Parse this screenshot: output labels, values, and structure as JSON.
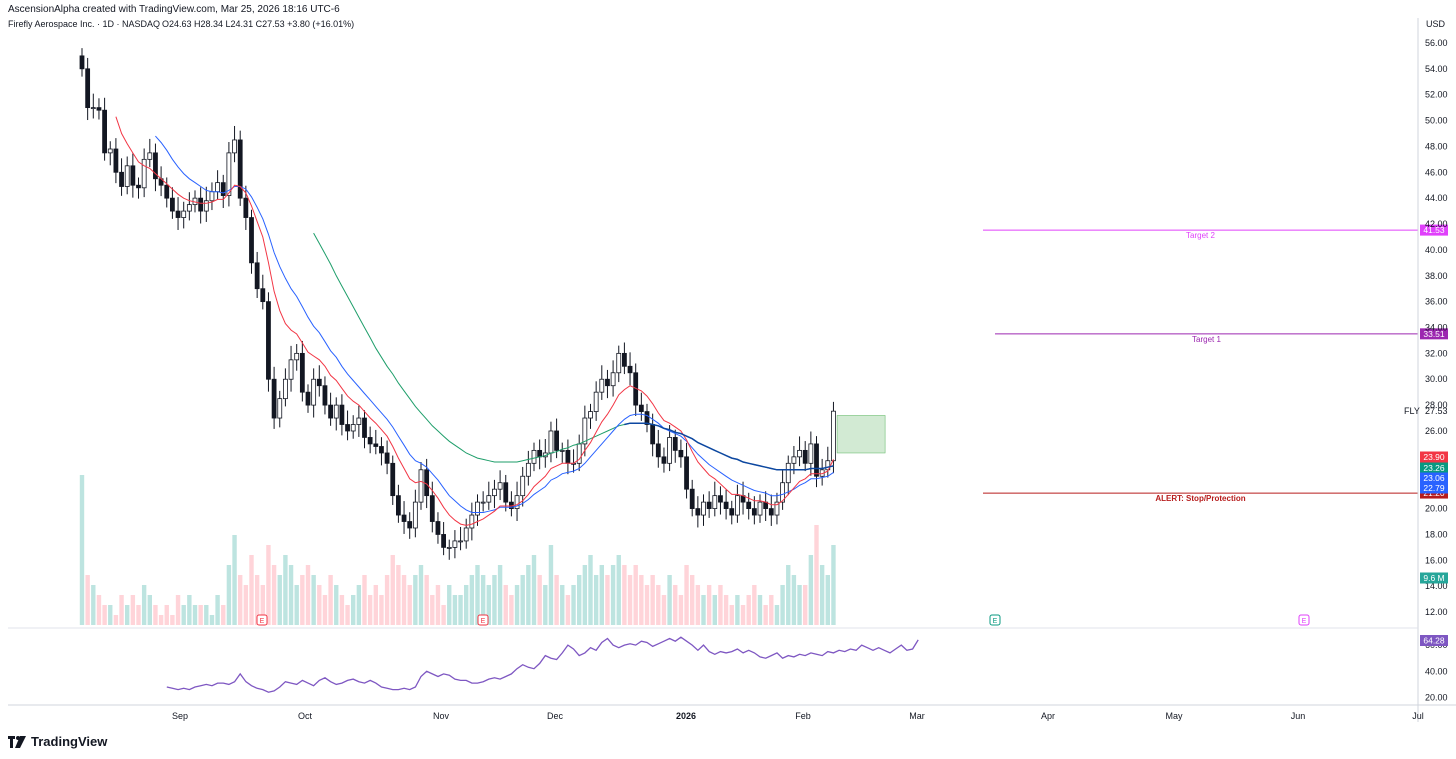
{
  "header": {
    "text": "AscensionAlpha created with TradingView.com, Mar 25, 2026 18:16 UTC-6"
  },
  "chart_data": {
    "type": "candlestick",
    "title": "Firefly Aerospace Inc. · 1D · NASDAQ",
    "ohlc_text": "O24.63  H28.34  L24.31  C27.53  +3.80 (+16.01%)",
    "currency": "USD",
    "symbol": "FLY",
    "last_price": "27.53",
    "ylim": [
      11,
      57
    ],
    "yticks": [
      "56.00",
      "54.00",
      "52.00",
      "50.00",
      "48.00",
      "46.00",
      "44.00",
      "42.00",
      "40.00",
      "38.00",
      "36.00",
      "34.00",
      "32.00",
      "30.00",
      "28.00",
      "26.00",
      "24.00",
      "22.00",
      "20.00",
      "18.00",
      "16.00",
      "14.00",
      "12.00"
    ],
    "xticks": [
      "Sep",
      "Oct",
      "Nov",
      "Dec",
      "2026",
      "Feb",
      "Mar",
      "Apr",
      "May",
      "Jun",
      "Jul"
    ],
    "closes": [
      54.0,
      51.0,
      51.0,
      50.8,
      47.5,
      47.8,
      46.0,
      44.9,
      46.5,
      45.0,
      44.8,
      47.0,
      47.5,
      45.5,
      45.0,
      44.0,
      43.0,
      42.5,
      43.0,
      43.5,
      44.0,
      43.0,
      43.8,
      44.5,
      45.2,
      44.2,
      47.5,
      48.5,
      44.0,
      42.5,
      39.0,
      37.0,
      36.0,
      30.0,
      27.0,
      28.5,
      30.0,
      31.5,
      32.0,
      29.0,
      28.0,
      30.0,
      29.5,
      28.0,
      27.0,
      28.0,
      26.5,
      26.0,
      26.5,
      27.0,
      25.5,
      25.0,
      24.8,
      24.3,
      23.5,
      21.0,
      19.5,
      19.0,
      18.5,
      20.5,
      23.0,
      21.0,
      19.0,
      18.0,
      17.0,
      17.0,
      17.5,
      17.5,
      18.5,
      19.5,
      20.5,
      20.5,
      21.0,
      21.5,
      22.0,
      20.5,
      20.0,
      21.0,
      22.5,
      23.5,
      24.5,
      24.0,
      24.3,
      26.0,
      24.5,
      24.5,
      23.5,
      23.5,
      25.0,
      27.0,
      27.5,
      29.0,
      30.0,
      29.5,
      30.5,
      32.0,
      31.0,
      30.5,
      28.0,
      27.5,
      26.5,
      25.0,
      24.0,
      23.5,
      25.5,
      24.5,
      24.0,
      21.5,
      20.0,
      19.5,
      20.5,
      20.0,
      21.0,
      20.5,
      20.0,
      19.5,
      21.0,
      20.5,
      20.0,
      19.5,
      20.5,
      20.0,
      19.5,
      20.5,
      22.0,
      23.5,
      24.0,
      24.5,
      23.5,
      25.0,
      22.5,
      23.0,
      23.7,
      27.53
    ],
    "ema_fast": [
      null,
      null,
      null,
      null,
      null,
      null,
      50.3,
      49.0,
      48.2,
      47.5,
      46.8,
      46.5,
      46.3,
      45.9,
      45.5,
      45.1,
      44.7,
      44.3,
      44.0,
      43.8,
      43.7,
      43.6,
      43.6,
      43.7,
      43.9,
      43.9,
      44.4,
      45.0,
      44.9,
      44.4,
      43.4,
      42.2,
      41.0,
      39.0,
      36.8,
      35.3,
      34.3,
      33.8,
      33.5,
      32.8,
      32.1,
      31.8,
      31.5,
      31.0,
      30.3,
      29.9,
      29.3,
      28.7,
      28.3,
      28.0,
      27.5,
      27.0,
      26.6,
      26.1,
      25.6,
      24.8,
      23.9,
      23.1,
      22.3,
      22.0,
      22.1,
      21.9,
      21.4,
      20.8,
      20.1,
      19.5,
      19.1,
      18.8,
      18.7,
      18.8,
      19.0,
      19.2,
      19.5,
      19.8,
      20.2,
      20.2,
      20.2,
      20.3,
      20.6,
      21.1,
      21.7,
      22.1,
      22.5,
      23.1,
      23.3,
      23.5,
      23.5,
      23.5,
      23.8,
      24.5,
      25.1,
      25.9,
      26.7,
      27.3,
      28.0,
      28.8,
      29.2,
      29.5,
      29.3,
      29.1,
      28.7,
      28.1,
      27.4,
      26.8,
      26.6,
      26.3,
      26.0,
      25.3,
      24.4,
      23.6,
      23.1,
      22.6,
      22.3,
      21.9,
      21.5,
      21.1,
      21.1,
      21.0,
      20.8,
      20.6,
      20.6,
      20.5,
      20.3,
      20.3,
      20.6,
      21.1,
      21.6,
      22.1,
      22.3,
      22.7,
      22.7,
      22.7,
      22.9,
      23.8
    ],
    "ema_mid": [
      null,
      null,
      null,
      null,
      null,
      null,
      null,
      null,
      null,
      null,
      null,
      null,
      null,
      48.8,
      48.3,
      47.7,
      47.0,
      46.4,
      45.9,
      45.5,
      45.2,
      44.9,
      44.6,
      44.5,
      44.5,
      44.4,
      44.6,
      44.9,
      44.9,
      44.7,
      44.1,
      43.3,
      42.4,
      41.2,
      39.8,
      38.7,
      37.8,
      37.0,
      36.4,
      35.6,
      34.8,
      34.1,
      33.6,
      32.9,
      32.2,
      31.7,
      31.0,
      30.4,
      29.9,
      29.4,
      28.9,
      28.4,
      27.9,
      27.4,
      26.9,
      26.3,
      25.6,
      24.9,
      24.2,
      23.7,
      23.5,
      23.2,
      22.7,
      22.2,
      21.6,
      21.0,
      20.6,
      20.2,
      19.9,
      19.7,
      19.7,
      19.7,
      19.8,
      19.9,
      20.1,
      20.1,
      20.1,
      20.2,
      20.4,
      20.7,
      21.1,
      21.4,
      21.7,
      22.2,
      22.4,
      22.7,
      22.8,
      22.9,
      23.1,
      23.5,
      24.0,
      24.5,
      25.0,
      25.5,
      26.0,
      26.5,
      26.9,
      27.2,
      27.3,
      27.3,
      27.2,
      26.9,
      26.6,
      26.2,
      26.0,
      25.8,
      25.6,
      25.2,
      24.7,
      24.2,
      23.8,
      23.4,
      23.1,
      22.8,
      22.5,
      22.2,
      22.0,
      21.8,
      21.6,
      21.4,
      21.3,
      21.2,
      21.0,
      21.0,
      21.1,
      21.3,
      21.5,
      21.8,
      22.0,
      22.3,
      22.3,
      22.4,
      22.5,
      22.8
    ],
    "sma_long": [
      null,
      null,
      null,
      null,
      null,
      null,
      null,
      null,
      null,
      null,
      null,
      null,
      null,
      null,
      null,
      null,
      null,
      null,
      null,
      null,
      null,
      null,
      null,
      null,
      null,
      null,
      null,
      null,
      null,
      null,
      null,
      null,
      null,
      null,
      null,
      null,
      null,
      null,
      null,
      null,
      null,
      41.3,
      40.5,
      39.7,
      38.9,
      38.0,
      37.2,
      36.4,
      35.6,
      34.8,
      34.0,
      33.2,
      32.4,
      31.7,
      31.0,
      30.4,
      29.7,
      29.1,
      28.5,
      27.9,
      27.4,
      26.9,
      26.4,
      26.0,
      25.6,
      25.2,
      24.9,
      24.6,
      24.3,
      24.1,
      23.9,
      23.8,
      23.7,
      23.6,
      23.6,
      23.6,
      23.6,
      23.6,
      23.7,
      23.8,
      23.9,
      24.0,
      24.1,
      24.3,
      24.4,
      24.6,
      24.7,
      24.9,
      25.0,
      25.2,
      25.4,
      25.6,
      25.8,
      26.0,
      26.2,
      26.4,
      26.5,
      26.6,
      26.6,
      26.6,
      26.6,
      26.5,
      26.4,
      26.2,
      26.1,
      25.9,
      25.8,
      25.6,
      25.4,
      25.1,
      24.9,
      24.7,
      24.5,
      24.3,
      24.1,
      23.9,
      23.8,
      23.6,
      23.5,
      23.4,
      23.3,
      23.2,
      23.1,
      23.0,
      23.0,
      23.0,
      23.0,
      23.0,
      23.0,
      23.1,
      23.1,
      23.1,
      23.2,
      23.3
    ],
    "sma_vwap_start": 96,
    "volume_relative": [
      0.15,
      0.05,
      0.04,
      0.03,
      0.02,
      0.02,
      0.01,
      0.03,
      0.02,
      0.03,
      0.02,
      0.04,
      0.03,
      0.02,
      0.01,
      0.02,
      0.01,
      0.03,
      0.02,
      0.03,
      0.02,
      0.02,
      0.02,
      0.01,
      0.03,
      0.02,
      0.06,
      0.09,
      0.05,
      0.04,
      0.07,
      0.05,
      0.04,
      0.08,
      0.06,
      0.05,
      0.07,
      0.06,
      0.04,
      0.05,
      0.06,
      0.05,
      0.04,
      0.03,
      0.05,
      0.04,
      0.03,
      0.02,
      0.03,
      0.04,
      0.05,
      0.03,
      0.04,
      0.03,
      0.05,
      0.07,
      0.06,
      0.05,
      0.04,
      0.05,
      0.06,
      0.05,
      0.03,
      0.04,
      0.02,
      0.04,
      0.03,
      0.03,
      0.04,
      0.05,
      0.06,
      0.05,
      0.04,
      0.05,
      0.06,
      0.04,
      0.03,
      0.04,
      0.05,
      0.06,
      0.07,
      0.05,
      0.04,
      0.08,
      0.05,
      0.04,
      0.03,
      0.04,
      0.05,
      0.06,
      0.07,
      0.05,
      0.06,
      0.05,
      0.06,
      0.07,
      0.06,
      0.05,
      0.06,
      0.05,
      0.04,
      0.05,
      0.04,
      0.03,
      0.05,
      0.04,
      0.03,
      0.06,
      0.05,
      0.04,
      0.03,
      0.04,
      0.03,
      0.04,
      0.03,
      0.02,
      0.03,
      0.02,
      0.03,
      0.04,
      0.03,
      0.02,
      0.03,
      0.02,
      0.04,
      0.06,
      0.05,
      0.04,
      0.04,
      0.07,
      0.1,
      0.06,
      0.05,
      0.08
    ],
    "earnings_markers": [
      "E",
      "E",
      "E",
      "E"
    ],
    "rsi": {
      "value": "64.28",
      "yticks": [
        "60.00",
        "40.00",
        "20.00"
      ],
      "ylim": [
        15,
        70
      ]
    },
    "rsi_values": [
      28,
      27,
      26,
      27,
      26,
      28,
      29,
      30,
      29,
      31,
      31,
      30,
      32,
      38,
      32,
      29,
      27,
      26,
      24,
      25,
      28,
      32,
      31,
      30,
      33,
      31,
      29,
      33,
      35,
      32,
      30,
      31,
      33,
      34,
      32,
      31,
      33,
      31,
      28,
      27,
      26,
      26,
      27,
      26,
      28,
      36,
      40,
      38,
      36,
      38,
      37,
      34,
      33,
      33,
      31,
      31,
      32,
      34,
      35,
      34,
      36,
      38,
      42,
      45,
      43,
      42,
      46,
      52,
      50,
      49,
      54,
      60,
      57,
      52,
      54,
      58,
      56,
      62,
      65,
      60,
      58,
      60,
      61,
      60,
      63,
      62,
      59,
      61,
      63,
      65,
      63,
      66,
      63,
      60,
      56,
      60,
      55,
      53,
      55,
      54,
      55,
      57,
      54,
      56,
      54,
      51,
      50,
      52,
      54,
      50,
      52,
      51,
      53,
      52,
      54,
      53,
      52,
      55,
      54,
      56,
      55,
      57,
      56,
      60,
      58,
      56,
      58,
      56,
      54,
      57,
      60,
      56,
      57,
      64
    ],
    "levels": [
      {
        "label": "Target 2",
        "value": "41.53",
        "color": "#e040fb"
      },
      {
        "label": "Target 1",
        "value": "33.51",
        "color": "#9c27b0"
      },
      {
        "label": "ALERT: Stop/Protection",
        "value": "21.20",
        "color": "#b71c1c"
      }
    ],
    "price_tags": [
      {
        "value": "23.90",
        "color": "#f23645"
      },
      {
        "value": "23.26",
        "color": "#089981"
      },
      {
        "value": "23.06",
        "color": "#2962ff"
      },
      {
        "value": "22.79",
        "color": "#2962ff"
      },
      {
        "value": "9.6 M",
        "color": "#26a69a"
      }
    ],
    "trade_box": {
      "from": 24.3,
      "to": 27.2,
      "color": "#4caf50"
    },
    "grid": false
  },
  "footer": {
    "brand": "TradingView"
  }
}
